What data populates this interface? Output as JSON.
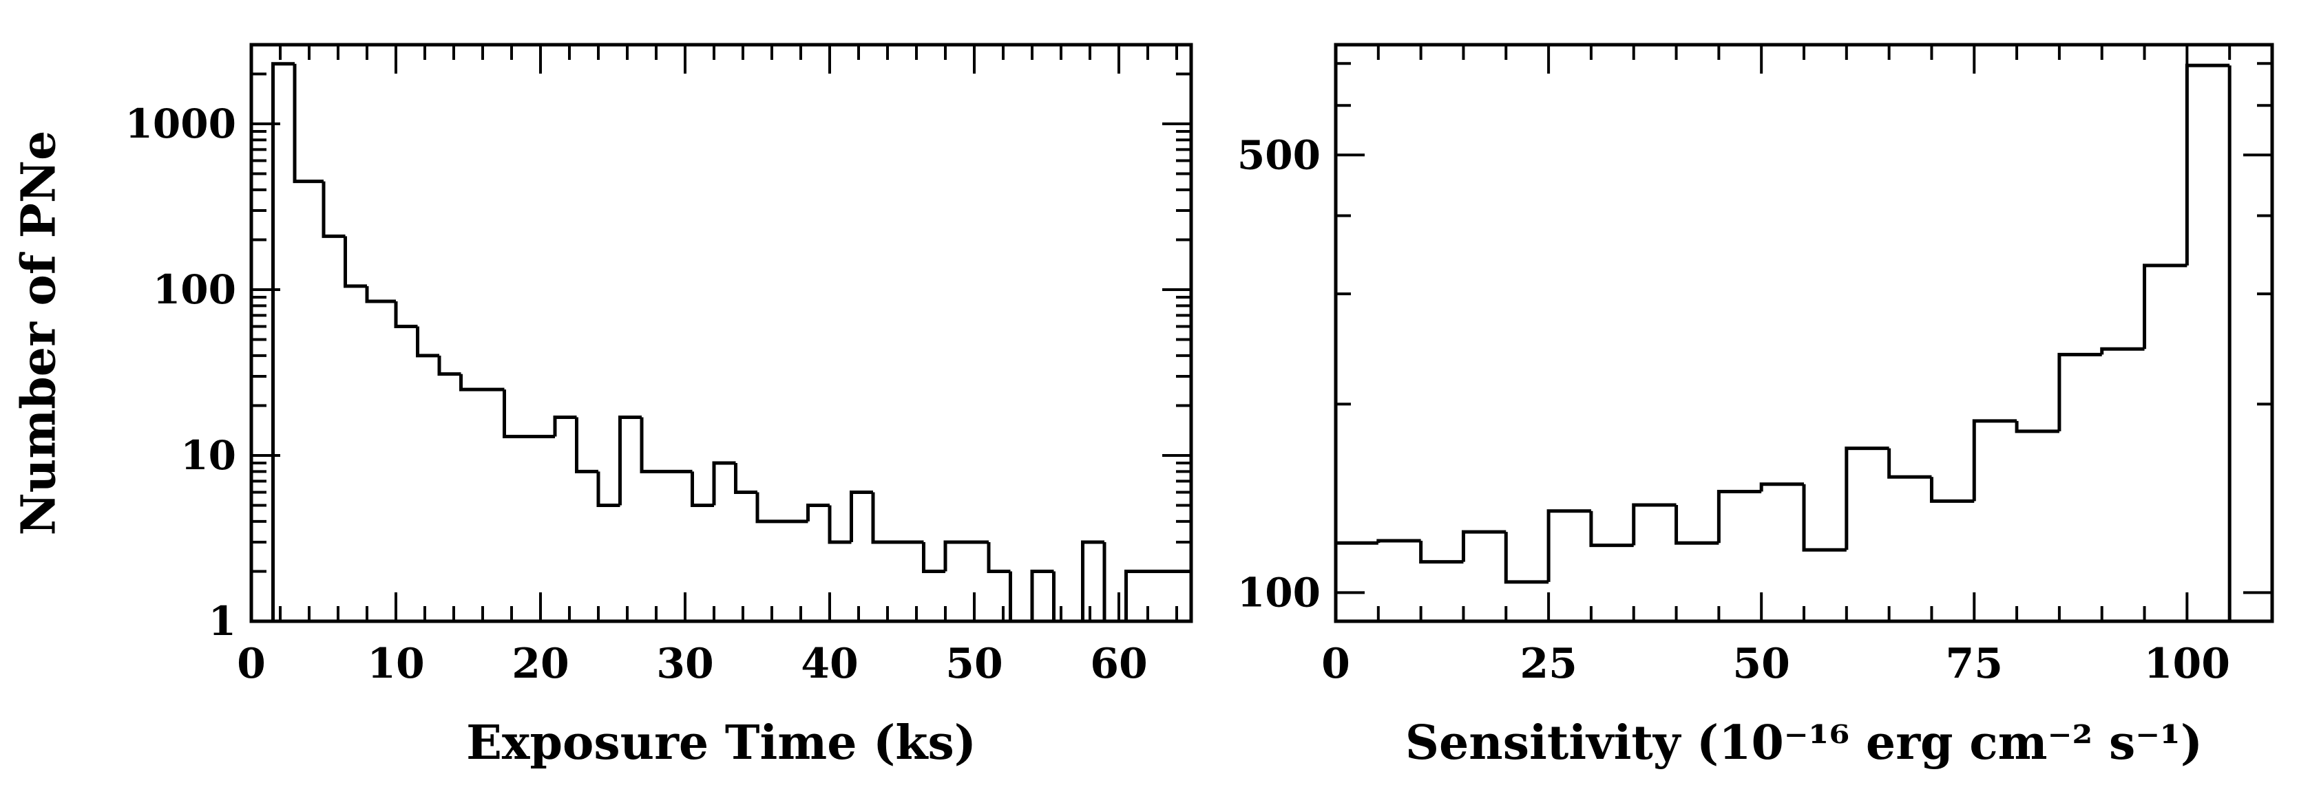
{
  "chart_data": [
    {
      "type": "histogram",
      "title": "",
      "xlabel": "Exposure Time (ks)",
      "ylabel": "Number of PNe",
      "yscale": "log",
      "xlim": [
        0,
        65
      ],
      "ylim": [
        1,
        3000
      ],
      "xticks": [
        0,
        10,
        20,
        30,
        40,
        50,
        60
      ],
      "yticks": [
        1,
        10,
        100,
        1000
      ],
      "grid": false,
      "bins": [
        {
          "x0": 0,
          "x1": 1.5,
          "y": 0
        },
        {
          "x0": 1.5,
          "x1": 3,
          "y": 2300
        },
        {
          "x0": 3,
          "x1": 5,
          "y": 450
        },
        {
          "x0": 5,
          "x1": 6.5,
          "y": 210
        },
        {
          "x0": 6.5,
          "x1": 8,
          "y": 105
        },
        {
          "x0": 8,
          "x1": 10,
          "y": 85
        },
        {
          "x0": 10,
          "x1": 11.5,
          "y": 60
        },
        {
          "x0": 11.5,
          "x1": 13,
          "y": 40
        },
        {
          "x0": 13,
          "x1": 14.5,
          "y": 31
        },
        {
          "x0": 14.5,
          "x1": 17.5,
          "y": 25
        },
        {
          "x0": 17.5,
          "x1": 21,
          "y": 13
        },
        {
          "x0": 21,
          "x1": 22.5,
          "y": 17
        },
        {
          "x0": 22.5,
          "x1": 24,
          "y": 8
        },
        {
          "x0": 24,
          "x1": 25.5,
          "y": 5
        },
        {
          "x0": 25.5,
          "x1": 27,
          "y": 17
        },
        {
          "x0": 27,
          "x1": 30.5,
          "y": 8
        },
        {
          "x0": 30.5,
          "x1": 32,
          "y": 5
        },
        {
          "x0": 32,
          "x1": 33.5,
          "y": 9
        },
        {
          "x0": 33.5,
          "x1": 35,
          "y": 6
        },
        {
          "x0": 35,
          "x1": 38.5,
          "y": 4
        },
        {
          "x0": 38.5,
          "x1": 40,
          "y": 5
        },
        {
          "x0": 40,
          "x1": 41.5,
          "y": 3
        },
        {
          "x0": 41.5,
          "x1": 43,
          "y": 6
        },
        {
          "x0": 43,
          "x1": 46.5,
          "y": 3
        },
        {
          "x0": 46.5,
          "x1": 48,
          "y": 2
        },
        {
          "x0": 48,
          "x1": 51,
          "y": 3
        },
        {
          "x0": 51,
          "x1": 52.5,
          "y": 2
        },
        {
          "x0": 52.5,
          "x1": 54,
          "y": 0
        },
        {
          "x0": 54,
          "x1": 55.5,
          "y": 2
        },
        {
          "x0": 55.5,
          "x1": 57.5,
          "y": 0
        },
        {
          "x0": 57.5,
          "x1": 59,
          "y": 3
        },
        {
          "x0": 59,
          "x1": 60.5,
          "y": 0
        },
        {
          "x0": 60.5,
          "x1": 62,
          "y": 2
        },
        {
          "x0": 62,
          "x1": 65,
          "y": 2
        }
      ]
    },
    {
      "type": "histogram",
      "title": "",
      "xlabel": "Sensitivity (10⁻¹⁶ erg cm⁻² s⁻¹)",
      "ylabel": "",
      "yscale": "log",
      "xlim": [
        0,
        110
      ],
      "ylim": [
        90,
        750
      ],
      "xticks": [
        0,
        25,
        50,
        75,
        100
      ],
      "yticks": [
        100,
        500
      ],
      "grid": false,
      "bins": [
        {
          "x0": 0,
          "x1": 5,
          "y": 120
        },
        {
          "x0": 5,
          "x1": 10,
          "y": 121
        },
        {
          "x0": 10,
          "x1": 15,
          "y": 112
        },
        {
          "x0": 15,
          "x1": 20,
          "y": 125
        },
        {
          "x0": 20,
          "x1": 25,
          "y": 104
        },
        {
          "x0": 25,
          "x1": 30,
          "y": 135
        },
        {
          "x0": 30,
          "x1": 35,
          "y": 119
        },
        {
          "x0": 35,
          "x1": 40,
          "y": 138
        },
        {
          "x0": 40,
          "x1": 45,
          "y": 120
        },
        {
          "x0": 45,
          "x1": 50,
          "y": 145
        },
        {
          "x0": 50,
          "x1": 55,
          "y": 149
        },
        {
          "x0": 55,
          "x1": 60,
          "y": 117
        },
        {
          "x0": 60,
          "x1": 65,
          "y": 170
        },
        {
          "x0": 65,
          "x1": 70,
          "y": 153
        },
        {
          "x0": 70,
          "x1": 75,
          "y": 140
        },
        {
          "x0": 75,
          "x1": 80,
          "y": 188
        },
        {
          "x0": 80,
          "x1": 85,
          "y": 181
        },
        {
          "x0": 85,
          "x1": 90,
          "y": 240
        },
        {
          "x0": 90,
          "x1": 95,
          "y": 245
        },
        {
          "x0": 95,
          "x1": 100,
          "y": 333
        },
        {
          "x0": 100,
          "x1": 105,
          "y": 695
        },
        {
          "x0": 105,
          "x1": 110,
          "y": 0
        }
      ]
    }
  ]
}
